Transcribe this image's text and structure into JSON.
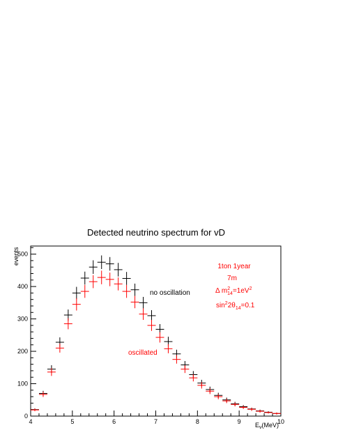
{
  "chart_data": {
    "type": "scatter",
    "title": "Detected neutrino spectrum for vD",
    "xlabel": "E",
    "xlabel_sub": "ν",
    "xlabel_unit": "(MeV)",
    "ylabel": "events",
    "xlim": [
      4,
      10
    ],
    "ylim": [
      0,
      525
    ],
    "x_ticks": [
      4,
      5,
      6,
      7,
      8,
      9,
      10
    ],
    "y_ticks": [
      0,
      100,
      200,
      300,
      400,
      500
    ],
    "grid": false,
    "bin_width": 0.2,
    "series": [
      {
        "name": "no oscillation",
        "color": "#000000",
        "x": [
          4.1,
          4.3,
          4.5,
          4.7,
          4.9,
          5.1,
          5.3,
          5.5,
          5.7,
          5.9,
          6.1,
          6.3,
          6.5,
          6.7,
          6.9,
          7.1,
          7.3,
          7.5,
          7.7,
          7.9,
          8.1,
          8.3,
          8.5,
          8.7,
          8.9,
          9.1,
          9.3,
          9.5,
          9.7,
          9.9
        ],
        "y": [
          20,
          70,
          145,
          228,
          312,
          380,
          426,
          460,
          475,
          470,
          452,
          425,
          390,
          350,
          310,
          268,
          230,
          192,
          158,
          128,
          102,
          82,
          64,
          50,
          38,
          29,
          22,
          16,
          12,
          8
        ],
        "yerr": [
          4,
          8,
          12,
          15,
          17,
          19,
          20,
          21,
          21,
          21,
          21,
          20,
          19,
          18,
          17,
          16,
          15,
          13,
          12,
          11,
          10,
          9,
          8,
          7,
          6,
          5,
          4,
          4,
          3,
          3
        ]
      },
      {
        "name": "oscillated",
        "color": "#ff0000",
        "x": [
          4.1,
          4.3,
          4.5,
          4.7,
          4.9,
          5.1,
          5.3,
          5.5,
          5.7,
          5.9,
          6.1,
          6.3,
          6.5,
          6.7,
          6.9,
          7.1,
          7.3,
          7.5,
          7.7,
          7.9,
          8.1,
          8.3,
          8.5,
          8.7,
          8.9,
          9.1,
          9.3,
          9.5,
          9.7,
          9.9
        ],
        "y": [
          19,
          67,
          136,
          210,
          285,
          345,
          385,
          415,
          428,
          422,
          408,
          385,
          352,
          315,
          280,
          243,
          208,
          175,
          145,
          118,
          95,
          77,
          60,
          47,
          36,
          27,
          21,
          15,
          11,
          8
        ],
        "yerr": [
          4,
          8,
          12,
          14,
          17,
          19,
          20,
          20,
          21,
          21,
          20,
          20,
          19,
          18,
          17,
          16,
          14,
          13,
          12,
          11,
          10,
          9,
          8,
          7,
          6,
          5,
          5,
          4,
          3,
          3
        ]
      }
    ],
    "annotations": {
      "line1": "1ton 1year",
      "line2": "7m",
      "dm_prefix": "Δ m",
      "dm_sup": "2",
      "dm_sub": "14",
      "dm_value": "=1eV",
      "dm_value_sup": "2",
      "sin_prefix": "sin",
      "sin_sup": "2",
      "sin_mid": "2θ",
      "sin_sub": "14",
      "sin_value": "=0.1"
    }
  }
}
